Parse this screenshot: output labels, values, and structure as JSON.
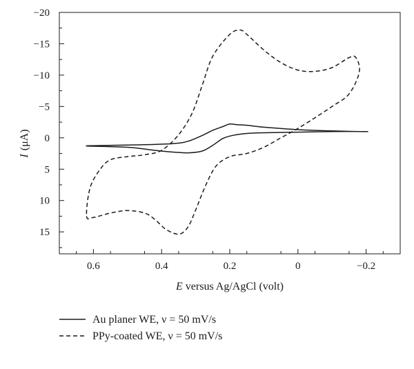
{
  "chart_data": {
    "type": "line",
    "title": "",
    "xlabel_italic": "E",
    "xlabel_rest": " versus Ag/AgCl (volt)",
    "ylabel_italic": "I",
    "ylabel_rest": "(μA)",
    "xlim": [
      0.7,
      -0.3
    ],
    "ylim": [
      -20,
      18.5
    ],
    "x_reversed": true,
    "y_reversed": true,
    "grid": false,
    "legend_position": "below-chart",
    "x_ticks": [
      0.6,
      0.4,
      0.2,
      0,
      -0.2
    ],
    "x_tick_labels": [
      "0.6",
      "0.4",
      "0.2",
      "0",
      "−0.2"
    ],
    "y_ticks": [
      -20,
      -15,
      -10,
      -5,
      0,
      5,
      10,
      15
    ],
    "y_tick_labels": [
      "−20",
      "−15",
      "−10",
      "−5",
      "0",
      "5",
      "10",
      "15"
    ],
    "series": [
      {
        "name": "Au planer WE, ν = 50 mV/s",
        "style": "solid",
        "color": "#1a1a1a",
        "x": [
          0.62,
          0.5,
          0.42,
          0.36,
          0.32,
          0.28,
          0.25,
          0.22,
          0.19,
          0.15,
          0.1,
          0.0,
          -0.1,
          -0.2,
          -0.18,
          -0.1,
          0.0,
          0.1,
          0.15,
          0.18,
          0.2,
          0.22,
          0.25,
          0.28,
          0.32,
          0.36,
          0.45,
          0.55,
          0.62
        ],
        "y": [
          1.3,
          1.5,
          2.0,
          2.3,
          2.4,
          2.1,
          1.2,
          0.1,
          -0.4,
          -0.7,
          -0.8,
          -0.9,
          -1.0,
          -1.0,
          -1.0,
          -1.1,
          -1.3,
          -1.7,
          -2.0,
          -2.1,
          -2.2,
          -1.8,
          -1.2,
          -0.4,
          0.5,
          0.9,
          1.1,
          1.2,
          1.3
        ]
      },
      {
        "name": "PPy-coated WE, ν = 50 mV/s",
        "style": "dashed",
        "color": "#1a1a1a",
        "x": [
          0.62,
          0.6,
          0.55,
          0.5,
          0.45,
          0.42,
          0.39,
          0.36,
          0.34,
          0.32,
          0.3,
          0.27,
          0.24,
          0.2,
          0.15,
          0.1,
          0.05,
          0.0,
          -0.05,
          -0.1,
          -0.15,
          -0.18,
          -0.17,
          -0.15,
          -0.1,
          -0.05,
          0.0,
          0.05,
          0.1,
          0.15,
          0.17,
          0.2,
          0.25,
          0.28,
          0.31,
          0.35,
          0.4,
          0.45,
          0.5,
          0.55,
          0.58,
          0.61,
          0.62
        ],
        "y": [
          12.5,
          12.7,
          12.0,
          11.6,
          12.0,
          13.0,
          14.5,
          15.3,
          15.2,
          14.0,
          11.5,
          7.5,
          4.5,
          3.0,
          2.5,
          1.5,
          0.0,
          -1.5,
          -3.2,
          -5.0,
          -7.0,
          -10.5,
          -12.8,
          -12.8,
          -11.2,
          -10.6,
          -10.8,
          -12.0,
          -14.0,
          -16.5,
          -17.2,
          -16.5,
          -13.0,
          -8.5,
          -4.0,
          -0.5,
          2.0,
          2.7,
          3.0,
          3.5,
          5.0,
          8.0,
          12.5
        ]
      }
    ]
  }
}
